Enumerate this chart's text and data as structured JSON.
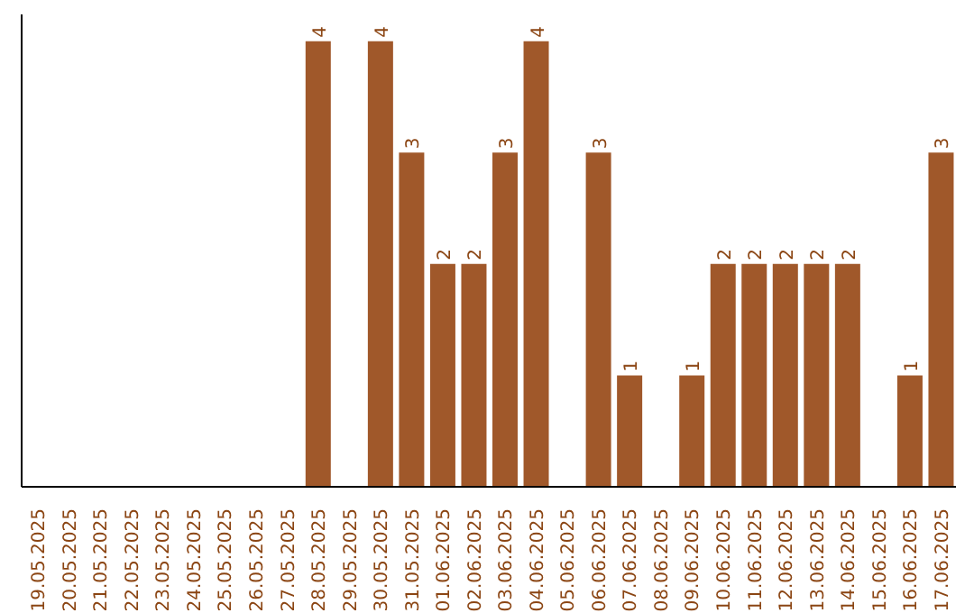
{
  "chart_data": {
    "type": "bar",
    "categories": [
      "19.05.2025",
      "20.05.2025",
      "21.05.2025",
      "22.05.2025",
      "23.05.2025",
      "24.05.2025",
      "25.05.2025",
      "26.05.2025",
      "27.05.2025",
      "28.05.2025",
      "29.05.2025",
      "30.05.2025",
      "31.05.2025",
      "01.06.2025",
      "02.06.2025",
      "03.06.2025",
      "04.06.2025",
      "05.06.2025",
      "06.06.2025",
      "07.06.2025",
      "08.06.2025",
      "09.06.2025",
      "10.06.2025",
      "11.06.2025",
      "12.06.2025",
      "13.06.2025",
      "14.06.2025",
      "15.06.2025",
      "16.06.2025",
      "17.06.2025"
    ],
    "values": [
      0,
      0,
      0,
      0,
      0,
      0,
      0,
      0,
      0,
      4,
      0,
      4,
      3,
      2,
      2,
      3,
      4,
      0,
      3,
      1,
      0,
      1,
      2,
      2,
      2,
      2,
      2,
      0,
      1,
      3
    ],
    "value_labels": [
      null,
      null,
      null,
      null,
      null,
      null,
      null,
      null,
      null,
      "4",
      null,
      "4",
      "3",
      "2",
      "2",
      "3",
      "4",
      null,
      "3",
      "1",
      null,
      "1",
      "2",
      "2",
      "2",
      "2",
      "2",
      null,
      "1",
      "3"
    ],
    "color": "#a0582a",
    "tick_labels": "x",
    "grid": false,
    "legend": false
  }
}
